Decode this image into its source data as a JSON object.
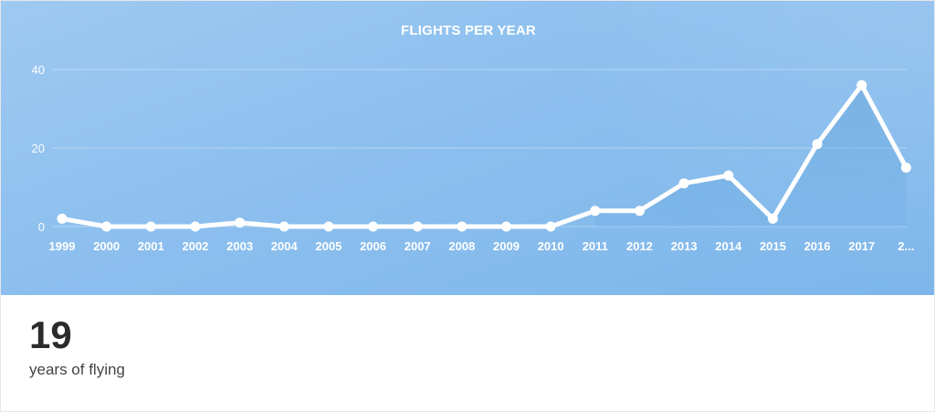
{
  "chart_data": {
    "type": "line",
    "title": "FLIGHTS PER YEAR",
    "categories": [
      "1999",
      "2000",
      "2001",
      "2002",
      "2003",
      "2004",
      "2005",
      "2006",
      "2007",
      "2008",
      "2009",
      "2010",
      "2011",
      "2012",
      "2013",
      "2014",
      "2015",
      "2016",
      "2017",
      "2..."
    ],
    "values": [
      2,
      0,
      0,
      0,
      1,
      0,
      0,
      0,
      0,
      0,
      0,
      0,
      4,
      4,
      11,
      13,
      2,
      21,
      36,
      15
    ],
    "y_ticks": [
      "0",
      "20",
      "40"
    ],
    "ylim": [
      0,
      40
    ],
    "grid": true,
    "area_fill_from_index": 12,
    "colors": {
      "line": "#ffffff",
      "area": "#5b9fda",
      "background": "#8fc1ee"
    }
  },
  "stats": {
    "value": "19",
    "label": "years of flying"
  }
}
